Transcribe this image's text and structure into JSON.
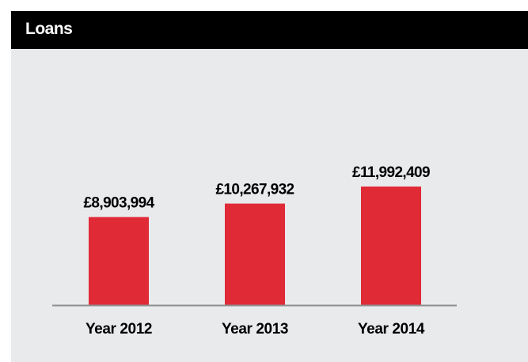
{
  "header": {
    "title": "Loans"
  },
  "colors": {
    "title_bar": "#000000",
    "panel_background": "#e9eaec",
    "bar": "#e02a36",
    "axis": "#8f8f8f"
  },
  "chart_data": {
    "type": "bar",
    "title": "Loans",
    "xlabel": "",
    "ylabel": "",
    "categories": [
      "Year 2012",
      "Year 2013",
      "Year 2014"
    ],
    "values": [
      8903994,
      10267932,
      11992409
    ],
    "value_labels": [
      "£8,903,994",
      "£10,267,932",
      "£11,992,409"
    ],
    "ylim": [
      0,
      11992409
    ],
    "grid": false,
    "legend": "none"
  }
}
